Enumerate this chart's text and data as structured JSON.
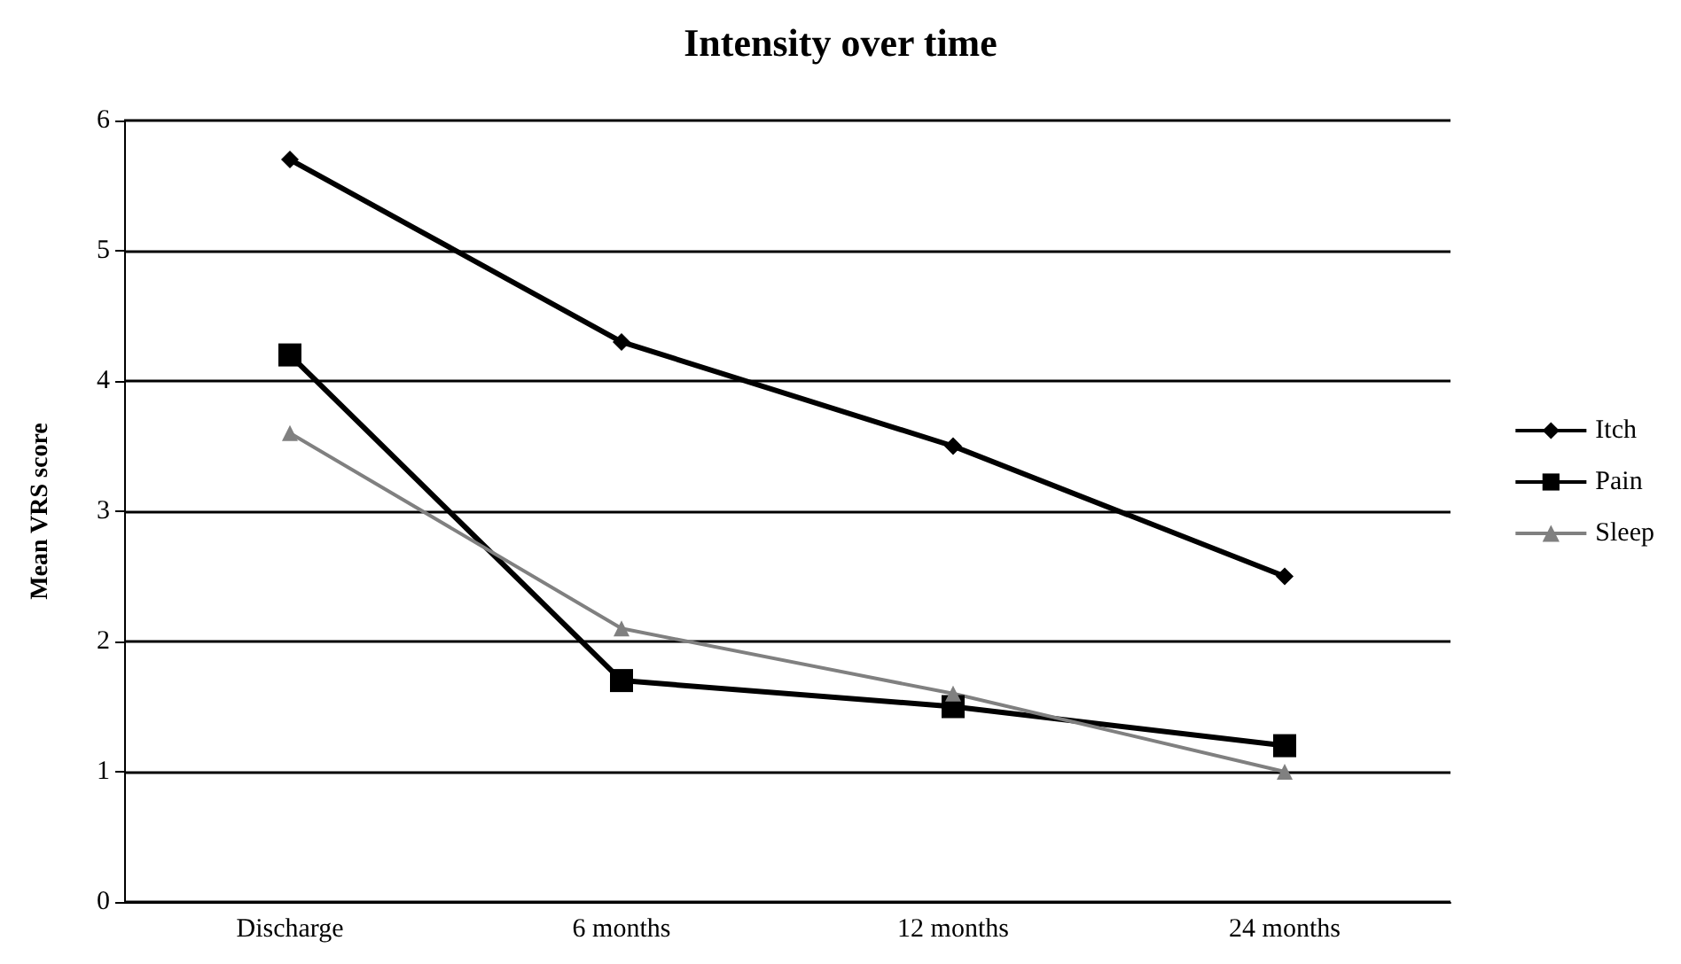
{
  "chart_data": {
    "type": "line",
    "title": "Intensity over time",
    "ylabel": "Mean VRS score",
    "categories": [
      "Discharge",
      "6 months",
      "12 months",
      "24 months"
    ],
    "series": [
      {
        "name": "Itch",
        "color": "#000000",
        "marker": "diamond",
        "values": [
          5.7,
          4.3,
          3.5,
          2.5
        ]
      },
      {
        "name": "Pain",
        "color": "#000000",
        "marker": "square",
        "values": [
          4.2,
          1.7,
          1.5,
          1.2
        ]
      },
      {
        "name": "Sleep",
        "color": "#808080",
        "marker": "triangle",
        "values": [
          3.6,
          2.1,
          1.6,
          1.0
        ]
      }
    ],
    "ylim": [
      0,
      6
    ],
    "yticks": [
      0,
      1,
      2,
      3,
      4,
      5,
      6
    ],
    "grid": "y",
    "legend": "right"
  }
}
